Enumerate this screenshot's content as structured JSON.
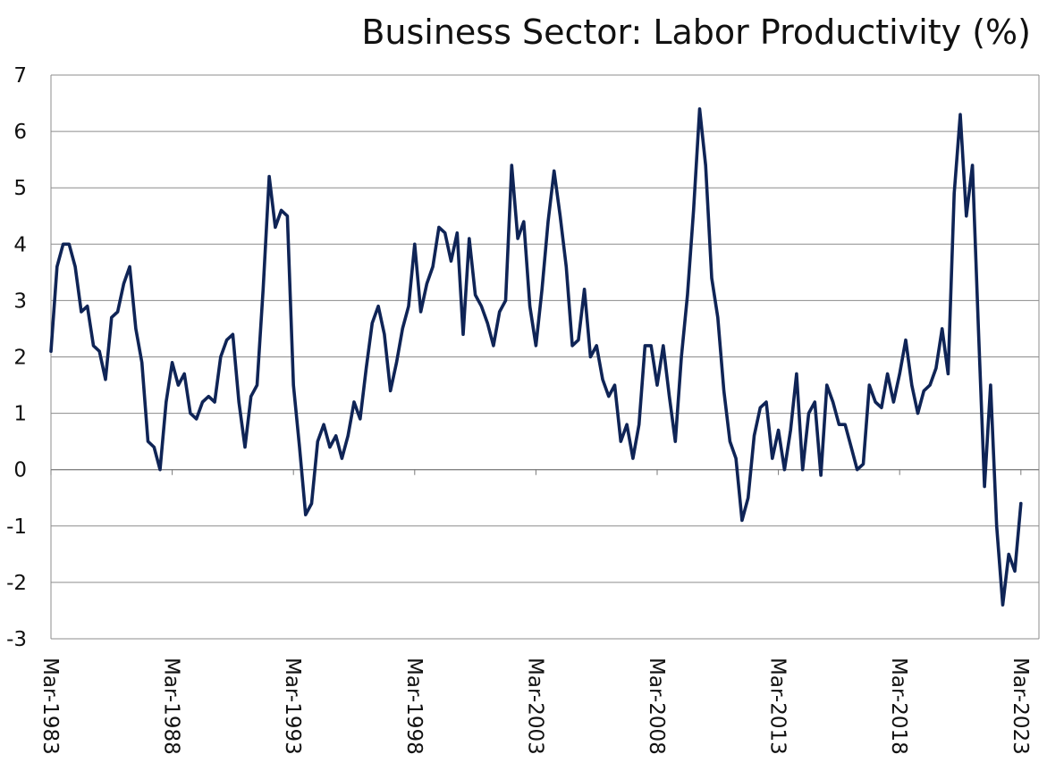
{
  "chart_data": {
    "type": "line",
    "title": "Business Sector: Labor Productivity (%)",
    "xlabel": "",
    "ylabel": "",
    "ylim": [
      -3,
      7
    ],
    "yticks": [
      "7",
      "6",
      "5",
      "4",
      "3",
      "2",
      "1",
      "0",
      "-1",
      "-2",
      "-3"
    ],
    "x_tick_labels": [
      "Mar-1983",
      "Mar-1988",
      "Mar-1993",
      "Mar-1998",
      "Mar-2003",
      "Mar-2008",
      "Mar-2013",
      "Mar-2018",
      "Mar-2023"
    ],
    "grid": true,
    "line_color": "#0f2456",
    "x_start": "Mar-1983",
    "x_frequency": "quarterly",
    "series": [
      {
        "values": [
          2.1,
          3.6,
          4.0,
          4.0,
          3.6,
          2.8,
          2.9,
          2.2,
          2.1,
          1.6,
          2.7,
          2.8,
          3.3,
          3.6,
          2.5,
          1.9,
          0.5,
          0.4,
          0.0,
          1.2,
          1.9,
          1.5,
          1.7,
          1.0,
          0.9,
          1.2,
          1.3,
          1.2,
          2.0,
          2.3,
          2.4,
          1.2,
          0.4,
          1.3,
          1.5,
          3.2,
          5.2,
          4.3,
          4.6,
          4.5,
          1.5,
          0.4,
          -0.8,
          -0.6,
          0.5,
          0.8,
          0.4,
          0.6,
          0.2,
          0.6,
          1.2,
          0.9,
          1.8,
          2.6,
          2.9,
          2.4,
          1.4,
          1.9,
          2.5,
          2.9,
          4.0,
          2.8,
          3.3,
          3.6,
          4.3,
          4.2,
          3.7,
          4.2,
          2.4,
          4.1,
          3.1,
          2.9,
          2.6,
          2.2,
          2.8,
          3.0,
          5.4,
          4.1,
          4.4,
          2.9,
          2.2,
          3.2,
          4.4,
          5.3,
          4.5,
          3.6,
          2.2,
          2.3,
          3.2,
          2.0,
          2.2,
          1.6,
          1.3,
          1.5,
          0.5,
          0.8,
          0.2,
          0.8,
          2.2,
          2.2,
          1.5,
          2.2,
          1.3,
          0.5,
          2.0,
          3.1,
          4.6,
          6.4,
          5.4,
          3.4,
          2.7,
          1.4,
          0.5,
          0.2,
          -0.9,
          -0.5,
          0.6,
          1.1,
          1.2,
          0.2,
          0.7,
          0.0,
          0.7,
          1.7,
          0.0,
          1.0,
          1.2,
          -0.1,
          1.5,
          1.2,
          0.8,
          0.8,
          0.4,
          0.0,
          0.1,
          1.5,
          1.2,
          1.1,
          1.7,
          1.2,
          1.7,
          2.3,
          1.5,
          1.0,
          1.4,
          1.5,
          1.8,
          2.5,
          1.7,
          4.9,
          6.3,
          4.5,
          5.4,
          2.5,
          -0.3,
          1.5,
          -1.0,
          -2.4,
          -1.5,
          -1.8,
          -0.6
        ]
      }
    ]
  }
}
